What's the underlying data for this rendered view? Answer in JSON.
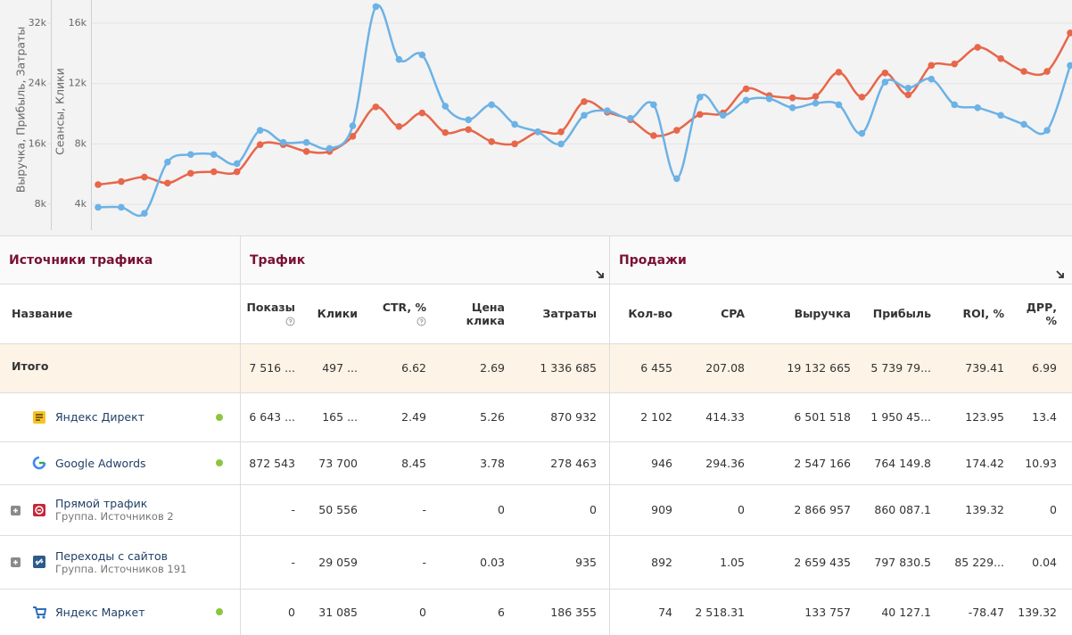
{
  "chart_data": {
    "type": "line",
    "ylabel": "Выручка, Прибыль, Затраты",
    "y2label": "Сеансы, Клики",
    "ylim": [
      4570,
      35070
    ],
    "yticks": [
      {
        "value": 8000,
        "label": "8k"
      },
      {
        "value": 16000,
        "label": "16k"
      },
      {
        "value": 24000,
        "label": "24k"
      },
      {
        "value": 32000,
        "label": "32k"
      }
    ],
    "y2lim": [
      2290,
      17540
    ],
    "y2ticks": [
      {
        "value": 4000,
        "label": "4k"
      },
      {
        "value": 8000,
        "label": "8k"
      },
      {
        "value": 12000,
        "label": "12k"
      },
      {
        "value": 16000,
        "label": "16k"
      }
    ],
    "grid": true,
    "series": [
      {
        "color": "#e8664a",
        "axis": "y",
        "values": [
          10600,
          11000,
          11600,
          10800,
          12100,
          12300,
          12300,
          15900,
          15900,
          15000,
          15000,
          17000,
          20900,
          18300,
          20100,
          17500,
          17900,
          16300,
          16000,
          17600,
          17600,
          21600,
          20200,
          19200,
          17100,
          17800,
          19900,
          20100,
          23300,
          22400,
          22100,
          22300,
          25500,
          22200,
          25400,
          22500,
          26400,
          26600,
          28800,
          27300,
          25600,
          25600,
          30700
        ]
      },
      {
        "color": "#6cb2e6",
        "axis": "y2",
        "values": [
          3800,
          3800,
          3400,
          6800,
          7300,
          7300,
          6700,
          8900,
          8100,
          8100,
          7700,
          9200,
          17100,
          13600,
          13900,
          10500,
          9600,
          10600,
          9300,
          8800,
          8000,
          9900,
          10200,
          9700,
          10600,
          5700,
          11100,
          9900,
          10900,
          11000,
          10400,
          10700,
          10600,
          8700,
          12100,
          11700,
          12300,
          10600,
          10400,
          9900,
          9300,
          8900,
          13200
        ]
      }
    ]
  },
  "table": {
    "group_headers": [
      "Источники трафика",
      "Трафик",
      "Продажи"
    ],
    "columns": [
      "Название",
      "Показы",
      "Клики",
      "CTR, %",
      "Цена клика",
      "Затраты",
      "Кол-во",
      "CPA",
      "Выручка",
      "Прибыль",
      "ROI, %",
      "ДРР, %"
    ],
    "total": {
      "name": "Итого",
      "cells": [
        "7 516 ...",
        "497 ...",
        "6.62",
        "2.69",
        "1 336 685",
        "6 455",
        "207.08",
        "19 132 665",
        "5 739 79...",
        "739.41",
        "6.99"
      ]
    },
    "rows": [
      {
        "name": "Яндекс Директ",
        "cells": [
          "6 643 ...",
          "165 ...",
          "2.49",
          "5.26",
          "870 932",
          "2 102",
          "414.33",
          "6 501 518",
          "1 950 45...",
          "123.95",
          "13.4"
        ]
      },
      {
        "name": "Google Adwords",
        "cells": [
          "872 543",
          "73 700",
          "8.45",
          "3.78",
          "278 463",
          "946",
          "294.36",
          "2 547 166",
          "764 149.8",
          "174.42",
          "10.93"
        ]
      },
      {
        "name": "Прямой трафик",
        "subtitle": "Группа. Источников 2",
        "cells": [
          "-",
          "50 556",
          "-",
          "0",
          "0",
          "909",
          "0",
          "2 866 957",
          "860 087.1",
          "139.32",
          "0"
        ]
      },
      {
        "name": "Переходы с сайтов",
        "subtitle": "Группа. Источников 191",
        "cells": [
          "-",
          "29 059",
          "-",
          "0.03",
          "935",
          "892",
          "1.05",
          "2 659 435",
          "797 830.5",
          "85 229...",
          "0.04"
        ]
      },
      {
        "name": "Яндекс Маркет",
        "cells": [
          "0",
          "31 085",
          "0",
          "6",
          "186 355",
          "74",
          "2 518.31",
          "133 757",
          "40 127.1",
          "-78.47",
          "139.32"
        ]
      }
    ]
  }
}
